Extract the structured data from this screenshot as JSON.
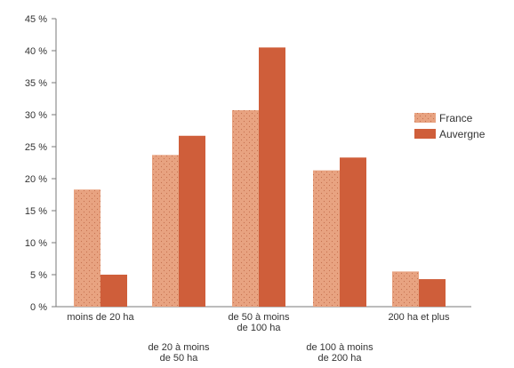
{
  "chart_data": {
    "type": "bar",
    "categories": [
      [
        "moins de 20 ha"
      ],
      [
        "de 20 à moins",
        "de 50 ha"
      ],
      [
        "de 50 à moins",
        "de 100 ha"
      ],
      [
        "de 100 à moins",
        "de 200 ha"
      ],
      [
        "200 ha et plus"
      ]
    ],
    "series": [
      {
        "name": "France",
        "values": [
          18.3,
          23.7,
          30.7,
          21.3,
          5.5
        ],
        "color": "#e8a381",
        "pattern": "dotted"
      },
      {
        "name": "Auvergne",
        "values": [
          5.0,
          26.7,
          40.5,
          23.3,
          4.3
        ],
        "color": "#cf5e3a",
        "pattern": "solid"
      }
    ],
    "y_ticks": [
      "0 %",
      "5 %",
      "10 %",
      "15 %",
      "20 %",
      "25 %",
      "30 %",
      "35 %",
      "40 %",
      "45 %"
    ],
    "ylim": [
      0,
      45
    ],
    "title": "",
    "xlabel": "",
    "ylabel": "",
    "legend_position": "right",
    "grid": false,
    "axis_color": "#7a7a7a"
  }
}
